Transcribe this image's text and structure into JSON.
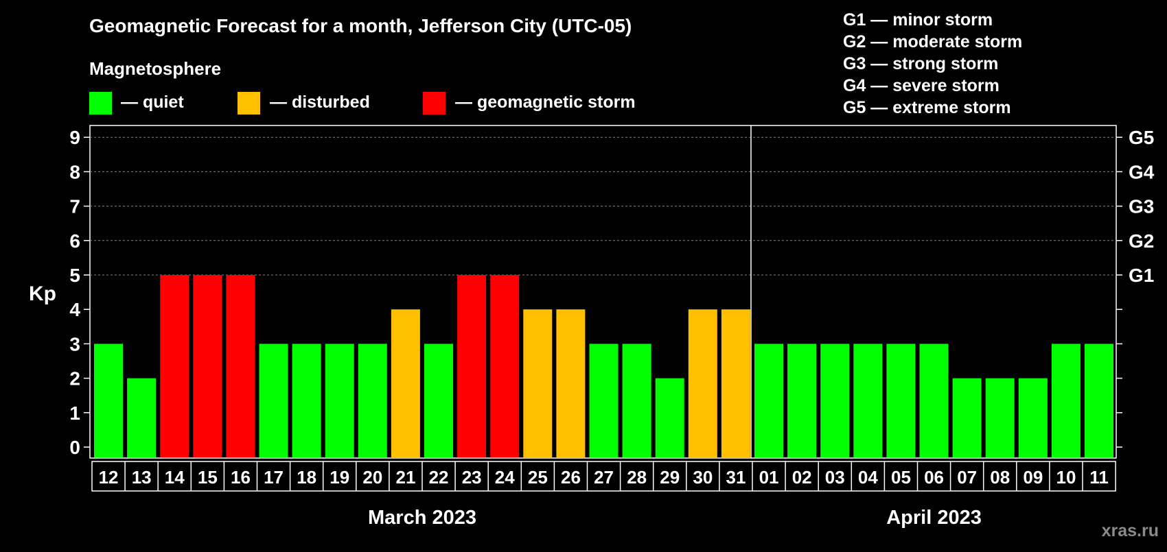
{
  "title": "Geomagnetic Forecast for a month, Jefferson City (UTC-05)",
  "legend": {
    "heading": "Magnetosphere",
    "items": [
      {
        "label": "— quiet",
        "color": "#00ff00"
      },
      {
        "label": "— disturbed",
        "color": "#ffc000"
      },
      {
        "label": "— geomagnetic storm",
        "color": "#ff0000"
      }
    ]
  },
  "storm_scale": [
    "G1 — minor storm",
    "G2 — moderate storm",
    "G3 — strong storm",
    "G4 — severe storm",
    "G5 — extreme storm"
  ],
  "watermark": "xras.ru",
  "chart_data": {
    "type": "bar",
    "ylabel": "Kp",
    "ylim": [
      0,
      9
    ],
    "yticks": [
      "0",
      "1",
      "2",
      "3",
      "4",
      "5",
      "6",
      "7",
      "8",
      "9"
    ],
    "right_axis_labels": [
      {
        "kp": 5,
        "label": "G1"
      },
      {
        "kp": 6,
        "label": "G2"
      },
      {
        "kp": 7,
        "label": "G3"
      },
      {
        "kp": 8,
        "label": "G4"
      },
      {
        "kp": 9,
        "label": "G5"
      }
    ],
    "grid": "dashed horizontal at Kp 5-9",
    "month_labels": [
      {
        "label": "March 2023",
        "from": "12",
        "to": "31"
      },
      {
        "label": "April 2023",
        "from": "01",
        "to": "11"
      }
    ],
    "categories": [
      "12",
      "13",
      "14",
      "15",
      "16",
      "17",
      "18",
      "19",
      "20",
      "21",
      "22",
      "23",
      "24",
      "25",
      "26",
      "27",
      "28",
      "29",
      "30",
      "31",
      "01",
      "02",
      "03",
      "04",
      "05",
      "06",
      "07",
      "08",
      "09",
      "10",
      "11"
    ],
    "values": [
      3,
      2,
      5,
      5,
      5,
      3,
      3,
      3,
      3,
      4,
      3,
      5,
      5,
      4,
      4,
      3,
      3,
      2,
      4,
      4,
      3,
      3,
      3,
      3,
      3,
      3,
      2,
      2,
      2,
      3,
      3
    ],
    "levels": [
      "quiet",
      "quiet",
      "storm",
      "storm",
      "storm",
      "quiet",
      "quiet",
      "quiet",
      "quiet",
      "disturbed",
      "quiet",
      "storm",
      "storm",
      "disturbed",
      "disturbed",
      "quiet",
      "quiet",
      "quiet",
      "disturbed",
      "disturbed",
      "quiet",
      "quiet",
      "quiet",
      "quiet",
      "quiet",
      "quiet",
      "quiet",
      "quiet",
      "quiet",
      "quiet",
      "quiet"
    ],
    "colors": {
      "quiet": "#00ff00",
      "disturbed": "#ffc000",
      "storm": "#ff0000"
    }
  }
}
